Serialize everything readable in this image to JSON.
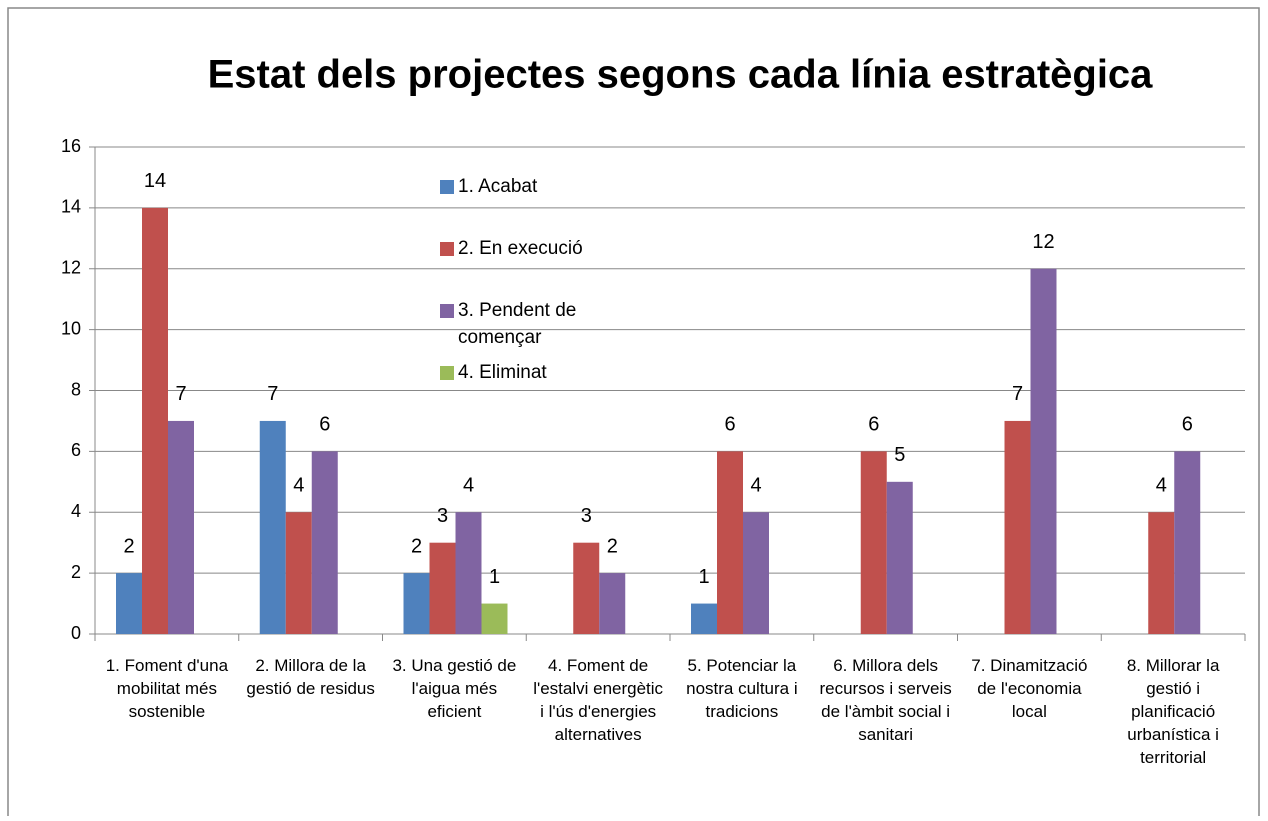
{
  "chart_data": {
    "type": "bar",
    "title": "Estat dels projectes segons cada línia estratègica",
    "categories": [
      "1. Foment d'una mobilitat més sostenible",
      "2. Millora de la gestió de residus",
      "3. Una gestió de l'aigua més eficient",
      "4. Foment de l'estalvi energètic i l'ús d'energies alternatives",
      "5. Potenciar la nostra cultura i tradicions",
      "6. Millora dels recursos i serveis de l'àmbit social i sanitari",
      "7. Dinamització de l'economia local",
      "8. Millorar la gestió i planificació urbanística i territorial"
    ],
    "series": [
      {
        "name": "1. Acabat",
        "color": "#4f81bd",
        "values": [
          2,
          7,
          2,
          null,
          1,
          null,
          null,
          null
        ]
      },
      {
        "name": "2. En execució",
        "color": "#c0504d",
        "values": [
          14,
          4,
          3,
          3,
          6,
          6,
          7,
          4
        ]
      },
      {
        "name": "3. Pendent de començar",
        "color": "#8064a2",
        "values": [
          7,
          6,
          4,
          2,
          4,
          5,
          12,
          6
        ]
      },
      {
        "name": "4. Eliminat",
        "color": "#9bbb59",
        "values": [
          null,
          null,
          1,
          null,
          null,
          null,
          null,
          null
        ]
      }
    ],
    "ylim": [
      0,
      16
    ],
    "yticks": [
      0,
      2,
      4,
      6,
      8,
      10,
      12,
      14,
      16
    ],
    "grid": true,
    "legend": "inside-top"
  }
}
